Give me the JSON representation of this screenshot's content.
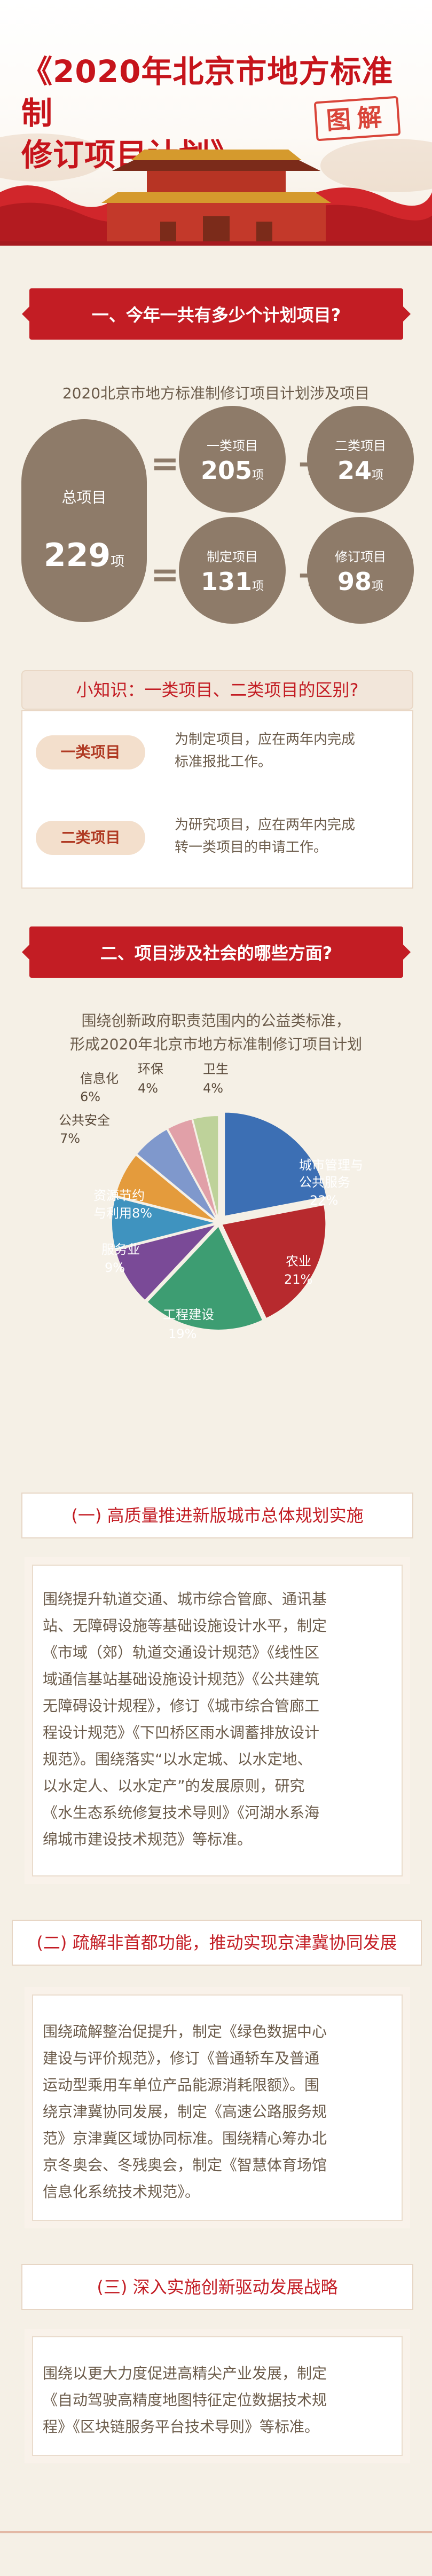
{
  "header": {
    "title_line1": "《2020年北京市地方标准制",
    "title_line2": "修订项目计划》",
    "seal_text": "图解"
  },
  "section1": {
    "banner": "一、今年一共有多少个计划项目?",
    "subtitle": "2020北京市地方标准制修订项目计划涉及项目",
    "total_label": "总项目",
    "total_value": "229",
    "total_unit": "项",
    "eq": "=",
    "plus": "+",
    "class1_label": "一类项目",
    "class1_value": "205",
    "class2_label": "二类项目",
    "class2_value": "24",
    "make_label": "制定项目",
    "make_value": "131",
    "revise_label": "修订项目",
    "revise_value": "98",
    "unit": "项"
  },
  "knowledge": {
    "title": "小知识：一类项目、二类项目的区别?",
    "item1_label": "一类项目",
    "item1_line1": "为制定项目，应在两年内完成",
    "item1_line2": "标准报批工作。",
    "item2_label": "二类项目",
    "item2_line1": "为研究项目，应在两年内完成",
    "item2_line2": "转一类项目的申请工作。"
  },
  "section2": {
    "banner": "二、项目涉及社会的哪些方面?",
    "subtitle_line1": "围绕创新政府职责范围内的公益类标准，",
    "subtitle_line2": "形成2020年北京市地方标准制修订项目计划"
  },
  "chart_data": {
    "type": "pie",
    "slices": [
      {
        "label": "城市管理与公共服务",
        "value": 22,
        "color": "#3c6fb4"
      },
      {
        "label": "农业",
        "value": 21,
        "color": "#b72a2e"
      },
      {
        "label": "工程建设",
        "value": 19,
        "color": "#3d9d72"
      },
      {
        "label": "服务业",
        "value": 9,
        "color": "#7a4a97"
      },
      {
        "label": "资源节约与利用",
        "value": 8,
        "color": "#3f93bf"
      },
      {
        "label": "公共安全",
        "value": 7,
        "color": "#e49b3c"
      },
      {
        "label": "信息化",
        "value": 6,
        "color": "#7f98cc"
      },
      {
        "label": "环保",
        "value": 4,
        "color": "#e1a0a8"
      },
      {
        "label": "卫生",
        "value": 4,
        "color": "#bed29a"
      }
    ],
    "label_texts": {
      "city1": "城市管理与",
      "city2": "公共服务",
      "city_pct": "22%",
      "agri": "农业",
      "agri_pct": "21%",
      "eng": "工程建设",
      "eng_pct": "19%",
      "svc": "服务业",
      "svc_pct": "9%",
      "res1": "资源节约",
      "res2": "与利用8%",
      "safe": "公共安全",
      "safe_pct": "7%",
      "info": "信息化",
      "info_pct": "6%",
      "env": "环保",
      "env_pct": "4%",
      "health": "卫生",
      "health_pct": "4%"
    }
  },
  "section3": {
    "tab1": "(一) 高质量推进新版城市总体规划实施",
    "text1": [
      "围绕提升轨道交通、城市综合管廊、通讯基",
      "站、无障碍设施等基础设施设计水平，制定",
      "《市域（郊）轨道交通设计规范》《线性区",
      "域通信基站基础设施设计规范》《公共建筑",
      "无障碍设计规程》，修订《城市综合管廊工",
      "程设计规范》《下凹桥区雨水调蓄排放设计",
      "规范》。围绕落实“以水定城、以水定地、",
      "以水定人、以水定产”的发展原则，研究",
      "《水生态系统修复技术导则》《河湖水系海",
      "绵城市建设技术规范》等标准。"
    ],
    "tab2": "(二) 疏解非首都功能，推动实现京津冀协同发展",
    "text2": [
      "围绕疏解整治促提升，制定《绿色数据中心",
      "建设与评价规范》，修订《普通轿车及普通",
      "运动型乘用车单位产品能源消耗限额》。围",
      "绕京津冀协同发展，制定《高速公路服务规",
      "范》京津冀区域协同标准。围绕精心筹办北",
      "京冬奥会、冬残奥会，制定《智慧体育场馆",
      "信息化系统技术规范》。"
    ],
    "tab3": "(三) 深入实施创新驱动发展战略",
    "text3": [
      "围绕以更大力度促进高精尖产业发展，制定",
      "《自动驾驶高精度地图特征定位数据技术规",
      "程》《区块链服务平台技术导则》等标准。"
    ]
  }
}
